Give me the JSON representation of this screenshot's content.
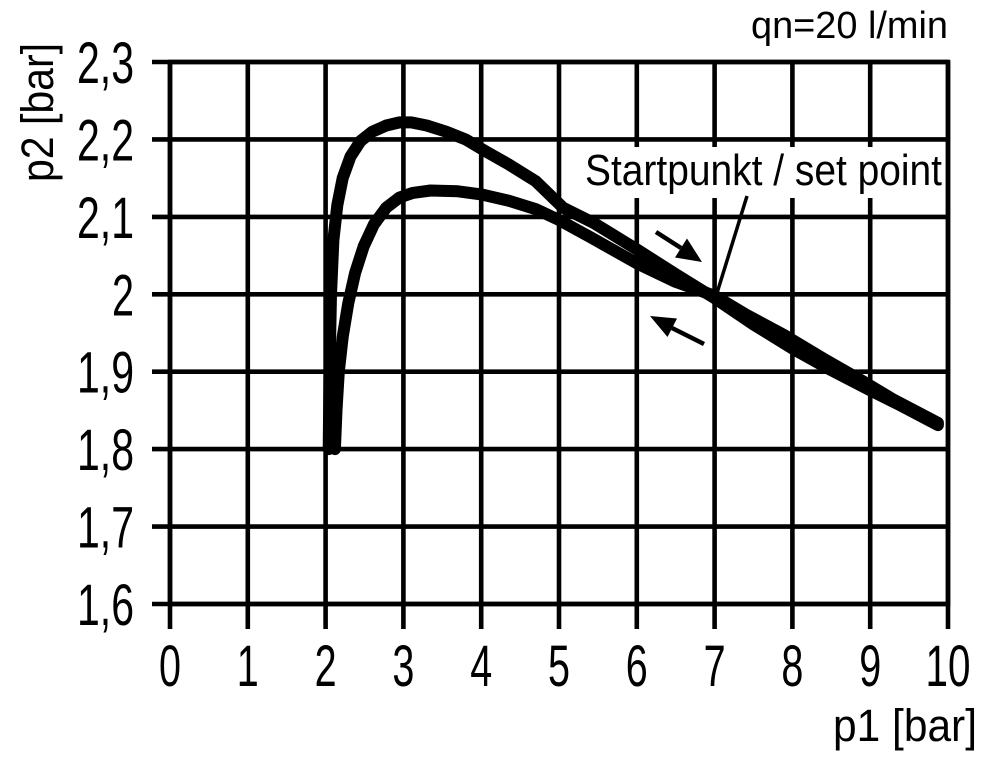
{
  "page": {
    "background_color": "#ffffff",
    "ink_color": "#000000"
  },
  "chart_data": {
    "type": "line",
    "title": "qn=20 l/min",
    "xlabel": "p1 [bar]",
    "ylabel": "p2 [bar]",
    "xlim": [
      0,
      10
    ],
    "ylim": [
      1.6,
      2.3
    ],
    "grid": true,
    "legend": "none",
    "x_ticks": [
      {
        "v": 0,
        "label": "0"
      },
      {
        "v": 1,
        "label": "1"
      },
      {
        "v": 2,
        "label": "2"
      },
      {
        "v": 3,
        "label": "3"
      },
      {
        "v": 4,
        "label": "4"
      },
      {
        "v": 5,
        "label": "5"
      },
      {
        "v": 6,
        "label": "6"
      },
      {
        "v": 7,
        "label": "7"
      },
      {
        "v": 8,
        "label": "8"
      },
      {
        "v": 9,
        "label": "9"
      },
      {
        "v": 10,
        "label": "10"
      }
    ],
    "y_ticks": [
      {
        "v": 2.3,
        "label": "2,3"
      },
      {
        "v": 2.2,
        "label": "2,2"
      },
      {
        "v": 2.1,
        "label": "2,1"
      },
      {
        "v": 2.0,
        "label": "2"
      },
      {
        "v": 1.9,
        "label": "1,9"
      },
      {
        "v": 1.8,
        "label": "1,8"
      },
      {
        "v": 1.7,
        "label": "1,7"
      },
      {
        "v": 1.6,
        "label": "1,6"
      }
    ],
    "annotation": {
      "text": "Startpunkt / set point",
      "points_to": {
        "p1": 7,
        "p2": 2.0
      }
    },
    "direction_arrows": [
      {
        "name": "forward-arrow",
        "direction": "down-right along upper curve"
      },
      {
        "name": "return-arrow",
        "direction": "up-left along lower curve"
      }
    ],
    "series": [
      {
        "name": "forward (p1 increasing)",
        "points": [
          [
            2.04,
            1.8
          ],
          [
            2.05,
            1.9
          ],
          [
            2.07,
            2.0
          ],
          [
            2.1,
            2.07
          ],
          [
            2.15,
            2.115
          ],
          [
            2.22,
            2.15
          ],
          [
            2.32,
            2.178
          ],
          [
            2.45,
            2.198
          ],
          [
            2.6,
            2.21
          ],
          [
            2.78,
            2.218
          ],
          [
            2.95,
            2.222
          ],
          [
            3.1,
            2.222
          ],
          [
            3.3,
            2.218
          ],
          [
            3.55,
            2.21
          ],
          [
            3.8,
            2.2
          ],
          [
            4.05,
            2.185
          ],
          [
            4.35,
            2.168
          ],
          [
            4.7,
            2.146
          ],
          [
            5.05,
            2.112
          ],
          [
            5.45,
            2.092
          ],
          [
            6.0,
            2.058
          ],
          [
            6.5,
            2.026
          ],
          [
            7.0,
            1.995
          ],
          [
            7.5,
            1.961
          ],
          [
            8.0,
            1.93
          ],
          [
            8.5,
            1.902
          ],
          [
            9.0,
            1.876
          ],
          [
            9.4,
            1.856
          ],
          [
            9.87,
            1.831
          ]
        ]
      },
      {
        "name": "return (p1 decreasing)",
        "points": [
          [
            2.12,
            1.8
          ],
          [
            2.14,
            1.85
          ],
          [
            2.17,
            1.9
          ],
          [
            2.22,
            1.945
          ],
          [
            2.29,
            1.988
          ],
          [
            2.38,
            2.028
          ],
          [
            2.49,
            2.062
          ],
          [
            2.62,
            2.09
          ],
          [
            2.78,
            2.112
          ],
          [
            2.95,
            2.125
          ],
          [
            3.12,
            2.131
          ],
          [
            3.35,
            2.134
          ],
          [
            3.7,
            2.133
          ],
          [
            4.0,
            2.129
          ],
          [
            4.35,
            2.121
          ],
          [
            4.7,
            2.11
          ],
          [
            5.0,
            2.096
          ],
          [
            5.4,
            2.074
          ],
          [
            6.0,
            2.04
          ],
          [
            6.5,
            2.016
          ],
          [
            7.0,
            1.998
          ],
          [
            7.4,
            1.974
          ],
          [
            7.9,
            1.947
          ],
          [
            8.4,
            1.917
          ],
          [
            8.9,
            1.888
          ],
          [
            9.3,
            1.864
          ],
          [
            9.87,
            1.834
          ]
        ]
      }
    ]
  }
}
